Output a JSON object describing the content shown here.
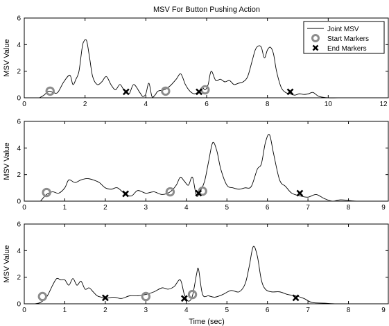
{
  "chart_data": {
    "type": "line",
    "title": "MSV For Button Pushing Action",
    "xlabel": "Time (sec)",
    "ylabel": "MSV Value",
    "legend": {
      "placement": "top-right",
      "entries": [
        "Joint MSV",
        "Start Markers",
        "End Markers"
      ]
    },
    "grid": false,
    "panels": [
      {
        "xlim": [
          0,
          12
        ],
        "ylim": [
          0,
          6
        ],
        "xticks": [
          "0",
          "2",
          "4",
          "6",
          "8",
          "10",
          "12"
        ],
        "yticks": [
          "0",
          "2",
          "4",
          "6"
        ],
        "series": [
          {
            "name": "Joint MSV",
            "x": [
              0.5,
              0.65,
              0.8,
              0.95,
              1.1,
              1.3,
              1.5,
              1.6,
              1.7,
              1.8,
              1.9,
              1.95,
              2.05,
              2.15,
              2.25,
              2.4,
              2.55,
              2.7,
              2.85,
              3.0,
              3.15,
              3.3,
              3.45,
              3.6,
              3.8,
              3.9,
              4.0,
              4.1,
              4.2,
              4.3,
              4.4,
              4.6,
              4.8,
              5.0,
              5.15,
              5.3,
              5.45,
              5.6,
              5.75,
              5.85,
              5.95,
              6.05,
              6.15,
              6.3,
              6.45,
              6.6,
              6.75,
              6.9,
              7.05,
              7.2,
              7.35,
              7.5,
              7.6,
              7.7,
              7.8,
              7.9,
              8.0,
              8.1,
              8.2,
              8.3,
              8.45,
              8.6,
              8.75,
              8.9,
              9.05,
              9.2,
              9.35,
              9.5,
              9.7,
              10.0,
              10.5,
              11.0,
              11.5
            ],
            "y": [
              0.0,
              0.2,
              0.5,
              0.4,
              0.4,
              1.2,
              1.7,
              1.0,
              1.4,
              2.0,
              3.7,
              4.2,
              4.3,
              3.0,
              1.6,
              1.0,
              1.2,
              1.6,
              1.0,
              0.6,
              1.0,
              0.5,
              0.3,
              1.0,
              0.4,
              0.1,
              0.3,
              1.1,
              0.1,
              0.2,
              0.5,
              0.6,
              0.9,
              1.4,
              1.8,
              1.0,
              0.5,
              0.3,
              0.5,
              0.8,
              0.6,
              1.0,
              2.0,
              1.3,
              1.4,
              1.2,
              1.3,
              1.0,
              1.1,
              1.2,
              1.6,
              2.8,
              3.6,
              3.9,
              3.8,
              3.0,
              3.6,
              3.8,
              3.3,
              2.0,
              0.8,
              0.4,
              0.3,
              0.2,
              0.3,
              0.25,
              0.3,
              0.4,
              0.1,
              0.0,
              0.0,
              0.0,
              0.0
            ]
          },
          {
            "name": "Start Markers",
            "points": [
              [
                0.85,
                0.5
              ],
              [
                4.65,
                0.5
              ],
              [
                5.95,
                0.6
              ]
            ]
          },
          {
            "name": "End Markers",
            "points": [
              [
                3.35,
                0.45
              ],
              [
                5.75,
                0.45
              ],
              [
                8.75,
                0.45
              ]
            ]
          }
        ]
      },
      {
        "xlim": [
          0,
          9
        ],
        "ylim": [
          0,
          6
        ],
        "xticks": [
          "0",
          "1",
          "2",
          "3",
          "4",
          "5",
          "6",
          "7",
          "8",
          "9"
        ],
        "yticks": [
          "0",
          "2",
          "4",
          "6"
        ],
        "series": [
          {
            "name": "Joint MSV",
            "x": [
              0.4,
              0.55,
              0.7,
              0.85,
              1.0,
              1.1,
              1.25,
              1.4,
              1.55,
              1.7,
              1.85,
              2.0,
              2.15,
              2.3,
              2.5,
              2.65,
              2.8,
              3.0,
              3.2,
              3.4,
              3.6,
              3.75,
              3.85,
              3.95,
              4.05,
              4.15,
              4.25,
              4.35,
              4.45,
              4.55,
              4.65,
              4.75,
              4.85,
              5.0,
              5.15,
              5.3,
              5.45,
              5.6,
              5.75,
              5.85,
              5.95,
              6.05,
              6.15,
              6.3,
              6.45,
              6.6,
              6.8,
              7.0,
              7.2,
              7.4,
              7.6,
              7.8,
              8.0,
              8.2,
              8.5,
              8.8
            ],
            "y": [
              0.0,
              0.5,
              0.7,
              0.6,
              1.0,
              1.6,
              1.4,
              1.6,
              1.7,
              1.6,
              1.4,
              1.0,
              0.9,
              1.0,
              0.5,
              0.4,
              0.8,
              0.6,
              0.7,
              0.5,
              0.7,
              1.2,
              1.8,
              1.5,
              1.2,
              1.8,
              0.4,
              0.8,
              1.5,
              3.0,
              4.4,
              3.8,
              2.4,
              1.2,
              1.0,
              0.9,
              1.0,
              1.1,
              2.4,
              2.8,
              4.4,
              5.0,
              3.6,
              1.6,
              1.1,
              0.6,
              0.4,
              0.3,
              0.5,
              0.2,
              0.0,
              0.1,
              0.05,
              0.0,
              0.0,
              0.0
            ]
          },
          {
            "name": "Start Markers",
            "points": [
              [
                0.55,
                0.65
              ],
              [
                3.6,
                0.7
              ],
              [
                4.4,
                0.75
              ]
            ]
          },
          {
            "name": "End Markers",
            "points": [
              [
                2.5,
                0.55
              ],
              [
                4.3,
                0.6
              ],
              [
                6.8,
                0.6
              ]
            ]
          }
        ]
      },
      {
        "xlim": [
          0,
          9
        ],
        "ylim": [
          0,
          6
        ],
        "xticks": [
          "0",
          "1",
          "2",
          "3",
          "4",
          "5",
          "6",
          "7",
          "8",
          "9"
        ],
        "yticks": [
          "0",
          "2",
          "4",
          "6"
        ],
        "series": [
          {
            "name": "Joint MSV",
            "x": [
              0.25,
              0.4,
              0.55,
              0.7,
              0.8,
              0.9,
              1.0,
              1.1,
              1.2,
              1.3,
              1.4,
              1.5,
              1.6,
              1.7,
              1.8,
              1.9,
              2.0,
              2.2,
              2.4,
              2.6,
              2.8,
              3.0,
              3.2,
              3.4,
              3.55,
              3.7,
              3.85,
              3.95,
              4.05,
              4.15,
              4.25,
              4.3,
              4.4,
              4.55,
              4.7,
              4.9,
              5.1,
              5.3,
              5.45,
              5.55,
              5.65,
              5.75,
              5.85,
              5.95,
              6.1,
              6.3,
              6.5,
              6.7,
              6.9,
              7.1,
              7.4,
              7.7,
              8.0,
              8.3,
              8.6
            ],
            "y": [
              0.0,
              0.1,
              0.5,
              1.4,
              1.9,
              1.8,
              1.8,
              1.4,
              1.9,
              1.4,
              1.7,
              1.1,
              1.2,
              0.9,
              0.6,
              0.5,
              0.4,
              0.5,
              0.4,
              0.6,
              0.6,
              0.7,
              0.9,
              1.2,
              1.1,
              1.3,
              1.8,
              0.7,
              0.2,
              0.6,
              2.2,
              2.6,
              0.7,
              0.6,
              0.5,
              0.7,
              1.0,
              0.9,
              1.5,
              2.8,
              4.3,
              3.6,
              1.8,
              1.1,
              0.9,
              0.9,
              0.7,
              0.6,
              0.4,
              0.1,
              0.05,
              0.0,
              0.0,
              0.0,
              0.0
            ]
          },
          {
            "name": "Start Markers",
            "points": [
              [
                0.45,
                0.55
              ],
              [
                3.0,
                0.55
              ],
              [
                4.15,
                0.7
              ]
            ]
          },
          {
            "name": "End Markers",
            "points": [
              [
                2.0,
                0.45
              ],
              [
                3.95,
                0.4
              ],
              [
                6.7,
                0.45
              ]
            ]
          }
        ]
      }
    ]
  }
}
